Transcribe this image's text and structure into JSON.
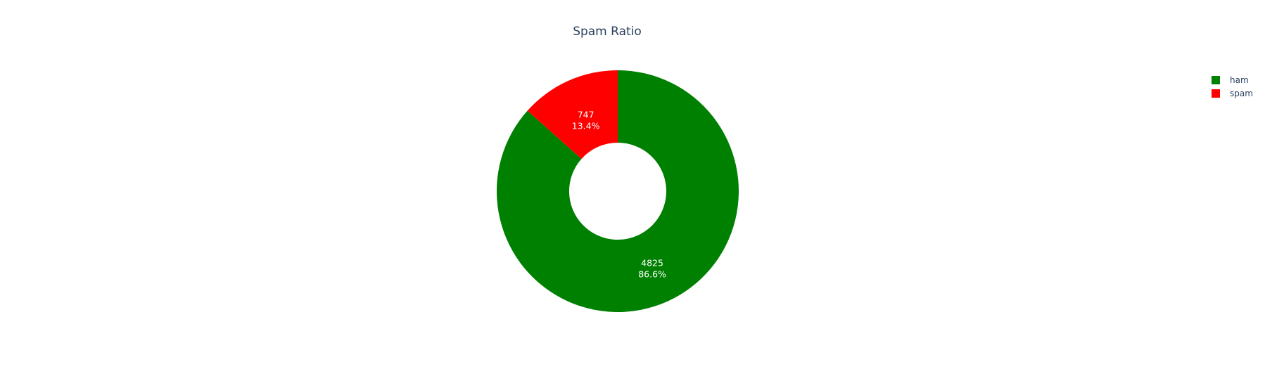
{
  "chart_data": {
    "type": "pie",
    "title": "Spam Ratio",
    "hole": true,
    "legend_position": "top-right",
    "labels": [
      "ham",
      "spam"
    ],
    "values": [
      4825,
      747
    ],
    "percent_labels": [
      "86.6%",
      "13.4%"
    ],
    "colors": [
      "#008000",
      "#ff0000"
    ],
    "text_color": "#ffffff"
  }
}
